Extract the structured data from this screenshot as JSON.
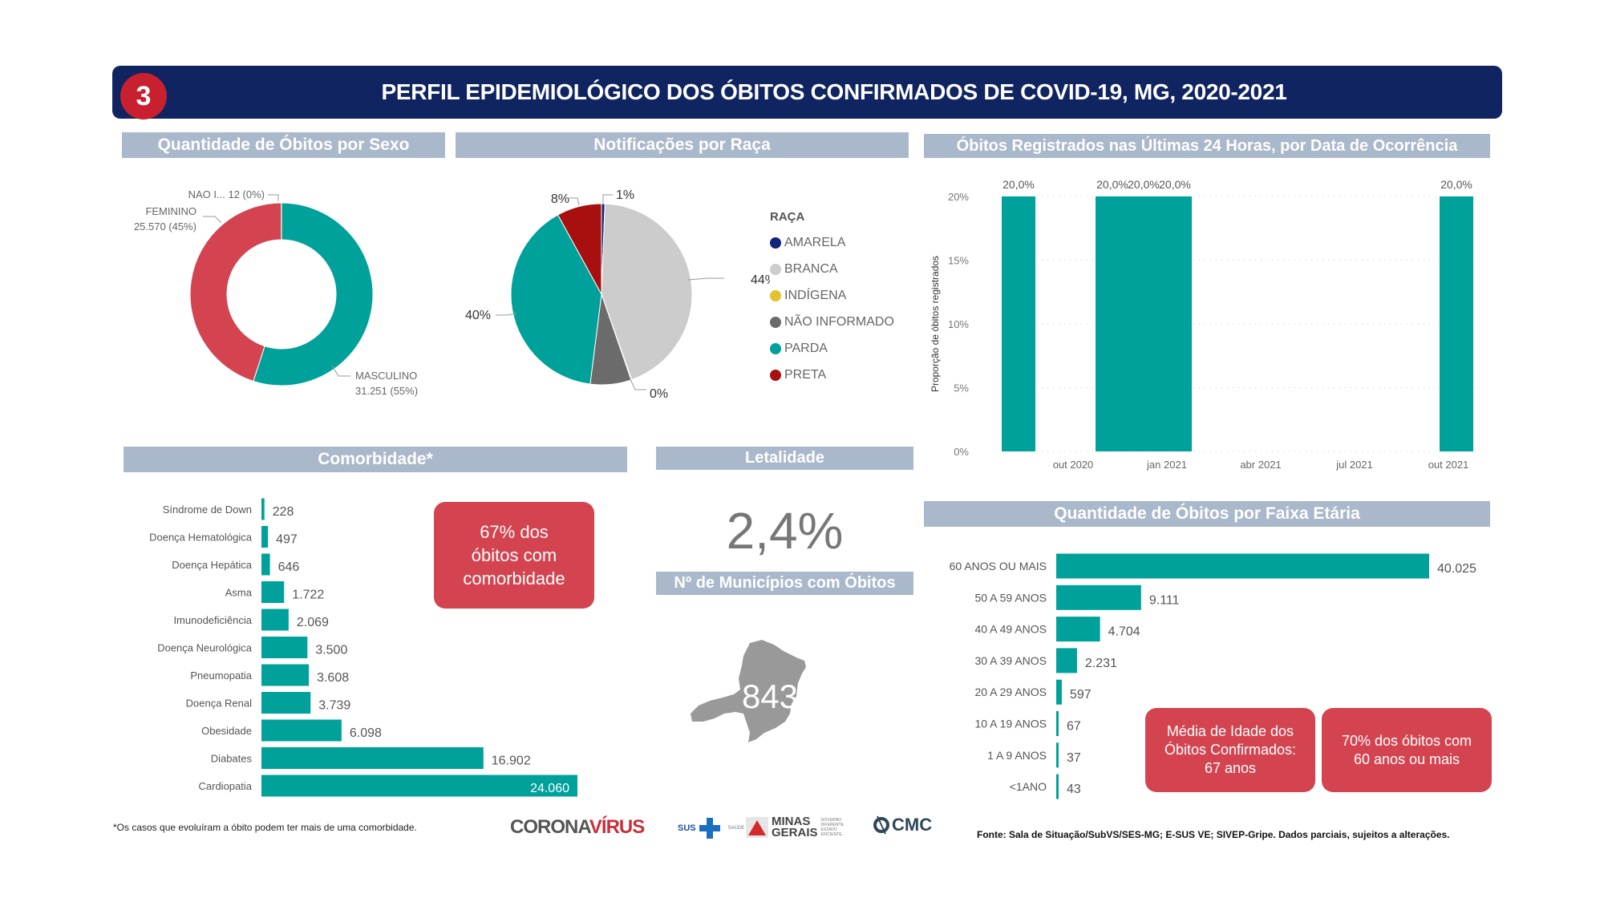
{
  "header": {
    "badge": "3",
    "title": "PERFIL EPIDEMIOLÓGICO DOS ÓBITOS CONFIRMADOS DE COVID-19, MG, 2020-2021"
  },
  "sections": {
    "sexo": "Quantidade de Óbitos por Sexo",
    "raca": "Notificações por Raça",
    "ultimas24": "Óbitos Registrados nas Últimas 24 Horas, por Data de Ocorrência",
    "comorbidade": "Comorbidade*",
    "letalidade": "Letalidade",
    "municipios": "Nº de Municípios com Óbitos",
    "faixa": "Quantidade de Óbitos por Faixa Etária"
  },
  "letalidade_value": "2,4%",
  "municipios_value": "843",
  "callouts": {
    "comorbidade": "67% dos\nóbitos com\ncomorbidade",
    "media_idade": "Média de Idade dos\nÓbitos Confirmados:\n67 anos",
    "sessenta": "70% dos óbitos com\n60 anos ou mais"
  },
  "footer": {
    "note": "*Os casos que evoluíram a óbito podem ter mais de uma comorbidade.",
    "logos": {
      "corona": "CORONA",
      "virus": "VÍRUS",
      "sus": "SUS",
      "saude": "SAÚDE",
      "minas": "MINAS",
      "gerais": "GERAIS",
      "gov": "GOVERNO DIFERENTE. ESTADO EFICIENTE.",
      "cmc": "CMC"
    },
    "source": "Fonte: Sala de Situação/SubVS/SES-MG; E-SUS VE; SIVEP-Gripe. Dados parciais, sujeitos a alterações."
  },
  "colors": {
    "teal": "#00a19a",
    "red": "#d34450",
    "navy": "#0f2460",
    "section": "#aab8cb"
  },
  "chart_data": [
    {
      "id": "sexo",
      "type": "pie",
      "variant": "donut",
      "title": "Quantidade de Óbitos por Sexo",
      "slices": [
        {
          "label": "MASCULINO",
          "value": 31251,
          "display": "31.251 (55%)",
          "color": "#00a19a"
        },
        {
          "label": "FEMININO",
          "value": 25570,
          "display": "25.570 (45%)",
          "color": "#d34450"
        },
        {
          "label": "NAO I...",
          "value": 12,
          "display": "12 (0%)",
          "color": "#999999"
        }
      ]
    },
    {
      "id": "raca",
      "type": "pie",
      "title": "Notificações por Raça",
      "legend_title": "RAÇA",
      "legend_position": "right",
      "slices": [
        {
          "label": "AMARELA",
          "value": 0.6,
          "display": "1%",
          "color": "#12237a"
        },
        {
          "label": "BRANCA",
          "value": 44,
          "display": "44%",
          "color": "#cccccc"
        },
        {
          "label": "INDÍGENA",
          "value": 0.1,
          "display": "0%",
          "color": "#e3c22e"
        },
        {
          "label": "NÃO INFORMADO",
          "value": 7.3,
          "display": "",
          "color": "#6b6b6b"
        },
        {
          "label": "PARDA",
          "value": 40,
          "display": "40%",
          "color": "#00a19a"
        },
        {
          "label": "PRETA",
          "value": 8,
          "display": "8%",
          "color": "#a81010"
        }
      ]
    },
    {
      "id": "ultimas24",
      "type": "bar",
      "title": "Óbitos Registrados nas Últimas 24 Horas, por Data de Ocorrência",
      "ylabel": "Proporção de óbitos registrados",
      "ylim": [
        0,
        20
      ],
      "yticks": [
        "0%",
        "5%",
        "10%",
        "15%",
        "20%"
      ],
      "xticks": [
        "out 2020",
        "jan 2021",
        "abr 2021",
        "jul 2021",
        "out 2021"
      ],
      "x_range_months": [
        "2020-07",
        "2021-10"
      ],
      "bars": [
        {
          "month": "2020-08",
          "value": 20,
          "label": "20,0%"
        },
        {
          "month": "2020-11",
          "value": 20,
          "label": "20,0%"
        },
        {
          "month": "2020-12",
          "value": 20,
          "label": "20,0%"
        },
        {
          "month": "2021-01",
          "value": 20,
          "label": "20,0%"
        },
        {
          "month": "2021-10",
          "value": 20,
          "label": "20,0%"
        }
      ],
      "grid": true
    },
    {
      "id": "comorbidade",
      "type": "bar",
      "orientation": "horizontal",
      "title": "Comorbidade*",
      "categories": [
        "Síndrome de Down",
        "Doença Hematológica",
        "Doença Hepática",
        "Asma",
        "Imunodeficiência",
        "Doença Neurológica",
        "Pneumopatia",
        "Doença Renal",
        "Obesidade",
        "Diabates",
        "Cardiopatia"
      ],
      "values": [
        228,
        497,
        646,
        1722,
        2069,
        3500,
        3608,
        3739,
        6098,
        16902,
        24060
      ],
      "labels": [
        "228",
        "497",
        "646",
        "1.722",
        "2.069",
        "3.500",
        "3.608",
        "3.739",
        "6.098",
        "16.902",
        "24.060"
      ]
    },
    {
      "id": "faixa",
      "type": "bar",
      "orientation": "horizontal",
      "title": "Quantidade de Óbitos por Faixa Etária",
      "categories": [
        "60 ANOS OU MAIS",
        "50 A 59 ANOS",
        "40 A 49 ANOS",
        "30 A 39 ANOS",
        "20 A 29 ANOS",
        "10 A 19 ANOS",
        "1 A 9 ANOS",
        "<1ANO"
      ],
      "values": [
        40025,
        9111,
        4704,
        2231,
        597,
        67,
        37,
        43
      ],
      "labels": [
        "40.025",
        "9.111",
        "4.704",
        "2.231",
        "597",
        "67",
        "37",
        "43"
      ]
    }
  ]
}
